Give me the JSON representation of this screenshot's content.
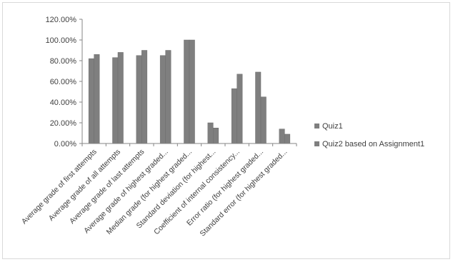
{
  "chart_data": {
    "type": "bar",
    "title": "",
    "xlabel": "",
    "ylabel": "",
    "ylim": [
      0,
      120
    ],
    "y_ticks": [
      "0.00%",
      "20.00%",
      "40.00%",
      "60.00%",
      "80.00%",
      "100.00%",
      "120.00%"
    ],
    "y_tick_values": [
      0,
      20,
      40,
      60,
      80,
      100,
      120
    ],
    "grid": false,
    "legend_position": "right",
    "categories": [
      "Average grade of first attempts",
      "Average grade of all attempts",
      "Average grade of last attempts",
      "Average grade of highest graded...",
      "Median grade (for highest graded...",
      "Standard deviation (for highest...",
      "Coefficient of internal consistency...",
      "Error ratio (for highest graded...",
      "Standard error (for highest graded..."
    ],
    "series": [
      {
        "name": "Quiz1",
        "color": "#7f7f7f",
        "values": [
          82,
          83,
          85,
          85,
          100,
          20,
          53,
          69,
          14
        ]
      },
      {
        "name": "Quiz2 based on Assignment1",
        "color": "#7f7f7f",
        "values": [
          86,
          88,
          90,
          90,
          100,
          15,
          67,
          45,
          9
        ]
      }
    ]
  }
}
